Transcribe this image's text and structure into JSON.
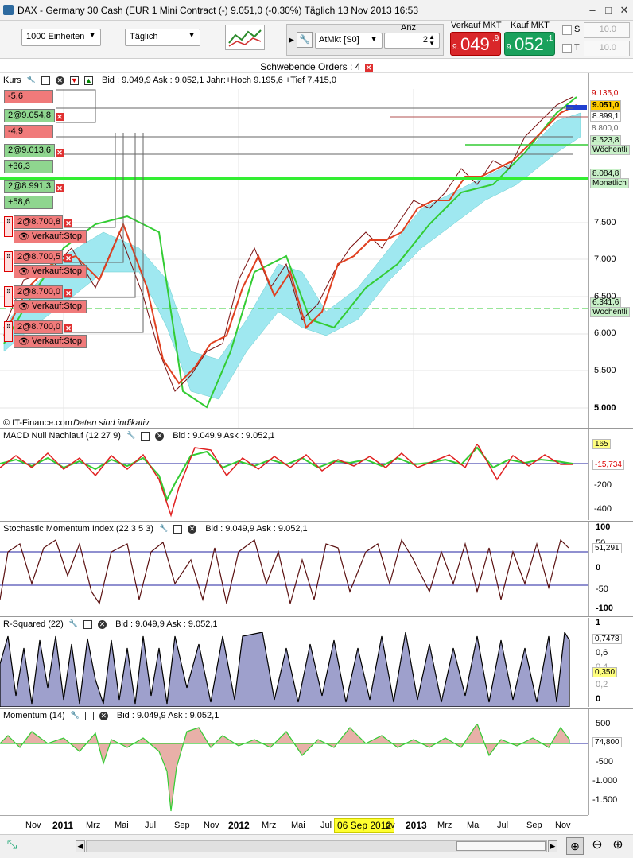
{
  "window": {
    "title": "DAX - Germany 30 Cash (EUR 1 Mini Contract (-)   9.051,0 (-0,30%)   Täglich  13 Nov 2013 16:53"
  },
  "toolbar": {
    "units": "1000 Einheiten",
    "period": "Täglich",
    "order_type": "AtMkt [S0]",
    "anz_label": "Anz",
    "anz_value": "2",
    "sell_label": "Verkauf MKT",
    "buy_label": "Kauf MKT",
    "sell_prefix": "9.",
    "sell_main": "049",
    "sell_suffix": ",9",
    "buy_prefix": "9.",
    "buy_main": "052",
    "buy_suffix": ",1",
    "s_label": "S",
    "t_label": "T",
    "s_value": "10.0",
    "t_value": "10.0"
  },
  "pending_orders": "Schwebende Orders : 4",
  "main_panel": {
    "name": "Kurs",
    "info": "Bid : 9.049,9 Ask : 9.052,1 Jahr:+Hoch 9.195,6 +Tief 7.415,0",
    "copyright": "© IT-Finance.com",
    "disclaimer": "Daten sind indikativ",
    "axis": [
      "7.500",
      "7.000",
      "6.500",
      "6.000",
      "5.500",
      "5.000"
    ],
    "tags": {
      "last": "9.051,0",
      "t1": "8.899,1",
      "t2": "8.523,8",
      "t2b": "Wöchentli",
      "t3": "8.084,8",
      "t3b": "Monatlich",
      "t4": "6.341,6",
      "t4b": "Wöchentli",
      "t5": "9.135,0",
      "t6": "8.800,0"
    },
    "orders": [
      {
        "label": "-5,6"
      },
      {
        "label": "2@9.054,8"
      },
      {
        "label": "-4,9"
      },
      {
        "label": "2@9.013,6"
      },
      {
        "label": "+36,3"
      },
      {
        "label": "2@8.991,3"
      },
      {
        "label": "+58,6"
      },
      {
        "label": "2@8.700,8"
      },
      {
        "label": "Verkauf:Stop"
      },
      {
        "label": "2@8.700,5"
      },
      {
        "label": "Verkauf:Stop"
      },
      {
        "label": "2@8.700,0"
      },
      {
        "label": "Verkauf:Stop"
      },
      {
        "label": "2@8.700,0"
      },
      {
        "label": "Verkauf:Stop"
      }
    ]
  },
  "macd": {
    "name": "MACD Null Nachlauf (12 27 9)",
    "info": "Bid : 9.049,9 Ask : 9.052,1",
    "axis": [
      "-200",
      "-400"
    ],
    "tag1": "165",
    "tag2": "-15,734"
  },
  "stoch": {
    "name": "Stochastic Momentum Index (22 3 5 3)",
    "info": "Bid : 9.049,9 Ask : 9.052,1",
    "axis": [
      "100",
      "50",
      "0",
      "-50",
      "-100"
    ],
    "tag": "51,291"
  },
  "rsq": {
    "name": "R-Squared (22)",
    "info": "Bid : 9.049,9 Ask : 9.052,1",
    "axis": [
      "1",
      "0,6",
      "0,4",
      "0,2",
      "0"
    ],
    "tag1": "0,7478",
    "tag2": "0,350"
  },
  "momentum": {
    "name": "Momentum (14)",
    "info": "Bid : 9.049,9 Ask : 9.052,1",
    "axis": [
      "500",
      "-500",
      "-1.000",
      "-1.500"
    ],
    "tag": "74,800"
  },
  "xaxis": {
    "labels": [
      "Nov",
      "2011",
      "Mrz",
      "Mai",
      "Jul",
      "Sep",
      "Nov",
      "2012",
      "Mrz",
      "Mai",
      "Jul",
      "ov",
      "2013",
      "Mrz",
      "Mai",
      "Jul",
      "Sep",
      "Nov"
    ],
    "cursor_date": "06 Sep 2012"
  },
  "colors": {
    "sell": "#d9272a",
    "buy": "#1aa15c",
    "line_green": "#33cc33",
    "line_red": "#e02020",
    "cloud": "#9fe8f0",
    "area": "#9ea0cc"
  }
}
